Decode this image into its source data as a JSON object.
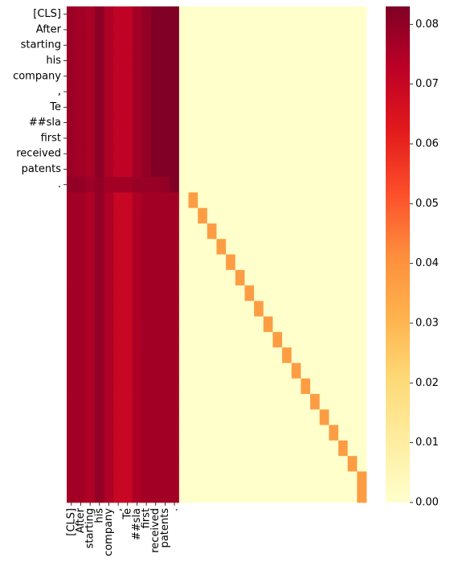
{
  "chart_data": {
    "type": "heatmap",
    "title": "",
    "xlabel": "",
    "ylabel": "",
    "x_tick_labels": [
      "[CLS]",
      "After",
      "starting",
      "his",
      "company",
      ",",
      "Te",
      "##sla",
      "first",
      "received",
      "patents",
      "."
    ],
    "y_tick_labels": [
      "[CLS]",
      "After",
      "starting",
      "his",
      "company",
      ",",
      "Te",
      "##sla",
      "first",
      "received",
      "patents",
      "."
    ],
    "n_columns": 32,
    "n_rows": 32,
    "colormap": "YlOrRd",
    "vmin": 0.0,
    "vmax": 0.083,
    "colorbar_ticks": [
      "0.00",
      "0.01",
      "0.02",
      "0.03",
      "0.04",
      "0.05",
      "0.06",
      "0.07",
      "0.08"
    ],
    "colorbar_tick_values": [
      0.0,
      0.01,
      0.02,
      0.03,
      0.04,
      0.05,
      0.06,
      0.07,
      0.08
    ],
    "top_block_values": [
      [
        0.078,
        0.077,
        0.076,
        0.081,
        0.075,
        0.072,
        0.072,
        0.077,
        0.08,
        0.083,
        0.083,
        0.083
      ],
      [
        0.078,
        0.077,
        0.076,
        0.081,
        0.075,
        0.072,
        0.072,
        0.077,
        0.08,
        0.083,
        0.083,
        0.083
      ],
      [
        0.078,
        0.077,
        0.076,
        0.081,
        0.075,
        0.072,
        0.072,
        0.077,
        0.08,
        0.083,
        0.083,
        0.083
      ],
      [
        0.078,
        0.077,
        0.076,
        0.081,
        0.075,
        0.072,
        0.072,
        0.077,
        0.08,
        0.083,
        0.083,
        0.083
      ],
      [
        0.078,
        0.077,
        0.076,
        0.081,
        0.075,
        0.072,
        0.072,
        0.077,
        0.08,
        0.083,
        0.083,
        0.083
      ],
      [
        0.078,
        0.077,
        0.076,
        0.081,
        0.075,
        0.072,
        0.072,
        0.077,
        0.08,
        0.083,
        0.083,
        0.083
      ],
      [
        0.078,
        0.077,
        0.076,
        0.081,
        0.075,
        0.072,
        0.072,
        0.077,
        0.08,
        0.083,
        0.083,
        0.083
      ],
      [
        0.078,
        0.077,
        0.076,
        0.081,
        0.075,
        0.072,
        0.072,
        0.077,
        0.08,
        0.083,
        0.083,
        0.083
      ],
      [
        0.078,
        0.077,
        0.076,
        0.081,
        0.075,
        0.072,
        0.072,
        0.077,
        0.08,
        0.083,
        0.083,
        0.083
      ],
      [
        0.078,
        0.077,
        0.076,
        0.081,
        0.075,
        0.072,
        0.072,
        0.077,
        0.08,
        0.083,
        0.083,
        0.083
      ],
      [
        0.078,
        0.077,
        0.076,
        0.081,
        0.075,
        0.072,
        0.072,
        0.077,
        0.08,
        0.083,
        0.083,
        0.083
      ],
      [
        0.08,
        0.08,
        0.078,
        0.08,
        0.077,
        0.077,
        0.077,
        0.079,
        0.079,
        0.079,
        0.08,
        0.083
      ]
    ],
    "bottom_block_column_values": [
      0.077,
      0.077,
      0.075,
      0.08,
      0.075,
      0.07,
      0.07,
      0.075,
      0.077,
      0.077,
      0.077,
      0.077
    ],
    "padding_cell_value": 0.0,
    "diagonal_value": 0.037
  }
}
